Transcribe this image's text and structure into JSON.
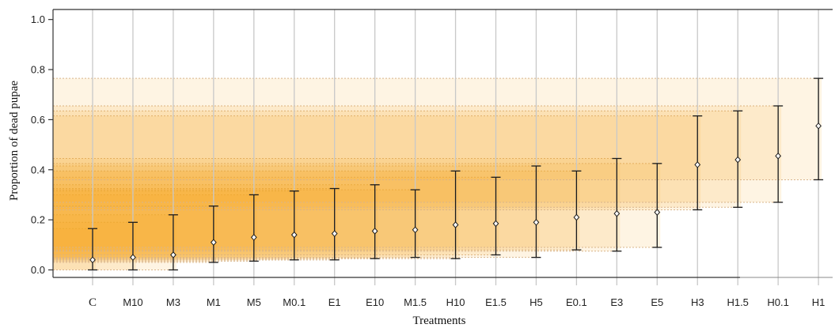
{
  "chart_data": {
    "type": "scatter",
    "title": "",
    "xlabel": "Treatments",
    "ylabel": "Proportion of dead pupae",
    "ylim": [
      -0.03,
      1.04
    ],
    "yticks": [
      "0.0",
      "0.2",
      "0.4",
      "0.6",
      "0.8",
      "1.0"
    ],
    "grid": "vertical",
    "categories": [
      "C",
      "M10",
      "M3",
      "M1",
      "M5",
      "M0.1",
      "E1",
      "E10",
      "M1.5",
      "H10",
      "E1.5",
      "H5",
      "E0.1",
      "E3",
      "E5",
      "H3",
      "H1.5",
      "H0.1",
      "H1"
    ],
    "series": [
      {
        "estimate": [
          0.04,
          0.05,
          0.06,
          0.11,
          0.13,
          0.14,
          0.145,
          0.155,
          0.16,
          0.18,
          0.185,
          0.19,
          0.21,
          0.225,
          0.23,
          0.42,
          0.44,
          0.455,
          0.575
        ],
        "lower": [
          0.0,
          0.0,
          0.0,
          0.03,
          0.035,
          0.04,
          0.04,
          0.045,
          0.05,
          0.045,
          0.06,
          0.05,
          0.08,
          0.075,
          0.09,
          0.24,
          0.25,
          0.27,
          0.36
        ],
        "upper": [
          0.165,
          0.19,
          0.22,
          0.255,
          0.3,
          0.315,
          0.325,
          0.34,
          0.32,
          0.395,
          0.37,
          0.415,
          0.395,
          0.445,
          0.425,
          0.615,
          0.635,
          0.655,
          0.765
        ]
      }
    ],
    "colors": {
      "band": "#f9a825",
      "band_band_opacity": 0.13,
      "band_line": "#d8b48a",
      "grid": "#c8c8c8",
      "errorbar": "#1a1a1a"
    }
  }
}
